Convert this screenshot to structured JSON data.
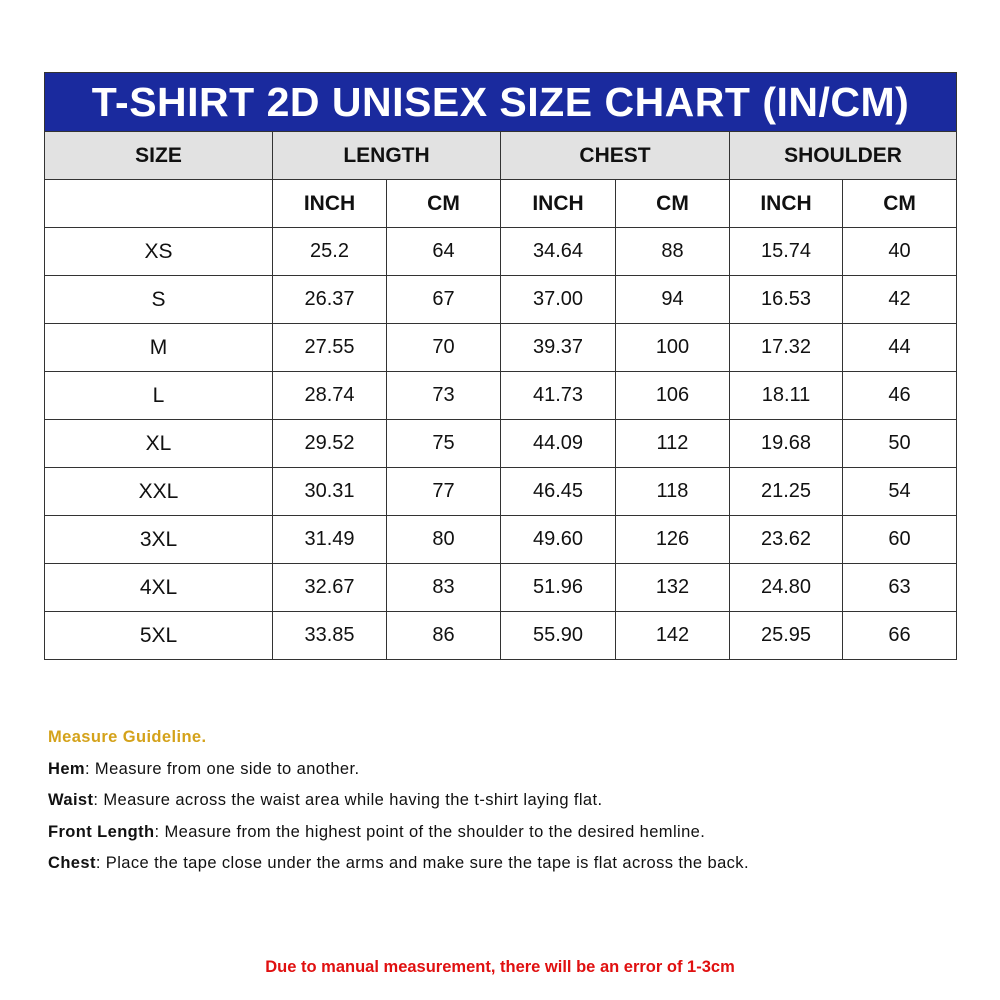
{
  "title": "T-SHIRT 2D UNISEX SIZE CHART (IN/CM)",
  "groups": [
    "SIZE",
    "LENGTH",
    "CHEST",
    "SHOULDER"
  ],
  "units": [
    "INCH",
    "CM",
    "INCH",
    "CM",
    "INCH",
    "CM"
  ],
  "rows": [
    [
      "XS",
      "25.2",
      "64",
      "34.64",
      "88",
      "15.74",
      "40"
    ],
    [
      "S",
      "26.37",
      "67",
      "37.00",
      "94",
      "16.53",
      "42"
    ],
    [
      "M",
      "27.55",
      "70",
      "39.37",
      "100",
      "17.32",
      "44"
    ],
    [
      "L",
      "28.74",
      "73",
      "41.73",
      "106",
      "18.11",
      "46"
    ],
    [
      "XL",
      "29.52",
      "75",
      "44.09",
      "112",
      "19.68",
      "50"
    ],
    [
      "XXL",
      "30.31",
      "77",
      "46.45",
      "118",
      "21.25",
      "54"
    ],
    [
      "3XL",
      "31.49",
      "80",
      "49.60",
      "126",
      "23.62",
      "60"
    ],
    [
      "4XL",
      "32.67",
      "83",
      "51.96",
      "132",
      "24.80",
      "63"
    ],
    [
      "5XL",
      "33.85",
      "86",
      "55.90",
      "142",
      "25.95",
      "66"
    ]
  ],
  "guideline": {
    "heading": "Measure Guideline.",
    "items": [
      {
        "term": "Hem",
        "text": ": Measure from one side to another."
      },
      {
        "term": "Waist",
        "text": ": Measure across the waist area while having the t-shirt laying flat."
      },
      {
        "term": "Front Length",
        "text": ": Measure from the highest point of the shoulder to the desired hemline."
      },
      {
        "term": "Chest",
        "text": ": Place the tape close under the arms and make sure the tape is flat across the back."
      }
    ]
  },
  "note": "Due to manual measurement, there will be an error of 1-3cm",
  "colors": {
    "title_bg": "#1a2a9e",
    "header_bg": "#e2e2e2",
    "guideline_heading": "#d4a21a",
    "note": "#e01010"
  }
}
